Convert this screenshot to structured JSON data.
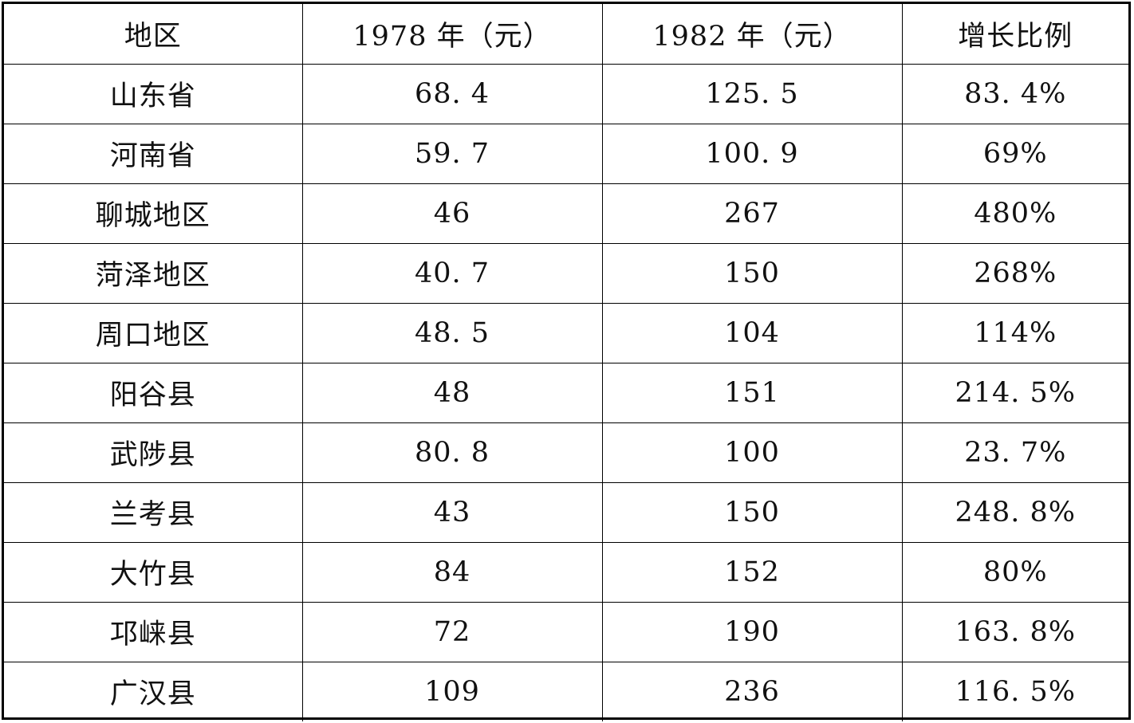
{
  "table": {
    "headers": [
      "地区",
      "1978 年（元）",
      "1982 年（元）",
      "增长比例"
    ],
    "rows": [
      [
        "山东省",
        "68. 4",
        "125. 5",
        "83. 4%"
      ],
      [
        "河南省",
        "59. 7",
        "100. 9",
        "69%"
      ],
      [
        "聊城地区",
        "46",
        "267",
        "480%"
      ],
      [
        "菏泽地区",
        "40. 7",
        "150",
        "268%"
      ],
      [
        "周口地区",
        "48. 5",
        "104",
        "114%"
      ],
      [
        "阳谷县",
        "48",
        "151",
        "214. 5%"
      ],
      [
        "武陟县",
        "80. 8",
        "100",
        "23. 7%"
      ],
      [
        "兰考县",
        "43",
        "150",
        "248. 8%"
      ],
      [
        "大竹县",
        "84",
        "152",
        "80%"
      ],
      [
        "邛崃县",
        "72",
        "190",
        "163. 8%"
      ],
      [
        "广汉县",
        "109",
        "236",
        "116. 5%"
      ]
    ]
  }
}
